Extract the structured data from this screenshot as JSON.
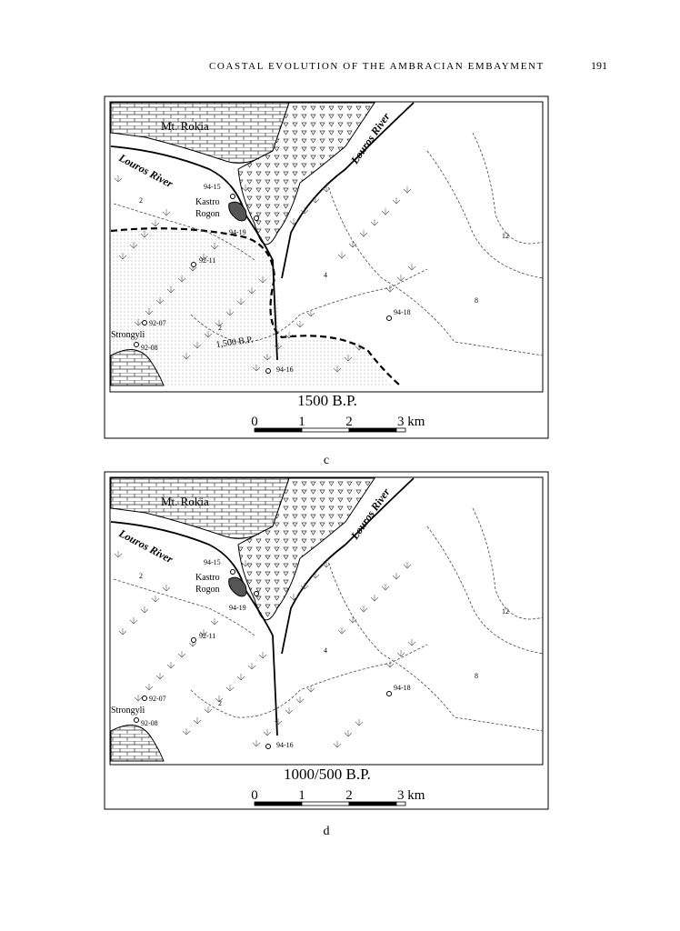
{
  "header": {
    "running_title": "COASTAL EVOLUTION OF THE AMBRACIAN EMBAYMENT",
    "page_number": "191"
  },
  "figures": [
    {
      "mountain": "Mt. Rokia",
      "river_left": "Louros River",
      "river_right": "Louros River",
      "place": [
        "Kastro",
        "Rogon"
      ],
      "village": "Strongyli",
      "sites": [
        "94-15",
        "94-19",
        "92-11",
        "92-07",
        "92-08",
        "94-16",
        "94-18"
      ],
      "contours": [
        "2",
        "2",
        "4",
        "8",
        "12"
      ],
      "shoreline_label": "1,500 B.P.",
      "title": "1500 B.P.",
      "scale": [
        "0",
        "1",
        "2",
        "3 km"
      ],
      "caption": "c"
    },
    {
      "mountain": "Mt. Rokia",
      "river_left": "Louros River",
      "river_right": "Louros River",
      "place": [
        "Kastro",
        "Rogon"
      ],
      "village": "Strongyli",
      "sites": [
        "94-15",
        "94-19",
        "92-11",
        "92-07",
        "92-08",
        "94-16",
        "94-18"
      ],
      "contours": [
        "2",
        "2",
        "4",
        "8",
        "12"
      ],
      "title": "1000/500 B.P.",
      "scale": [
        "0",
        "1",
        "2",
        "3 km"
      ],
      "caption": "d"
    }
  ]
}
